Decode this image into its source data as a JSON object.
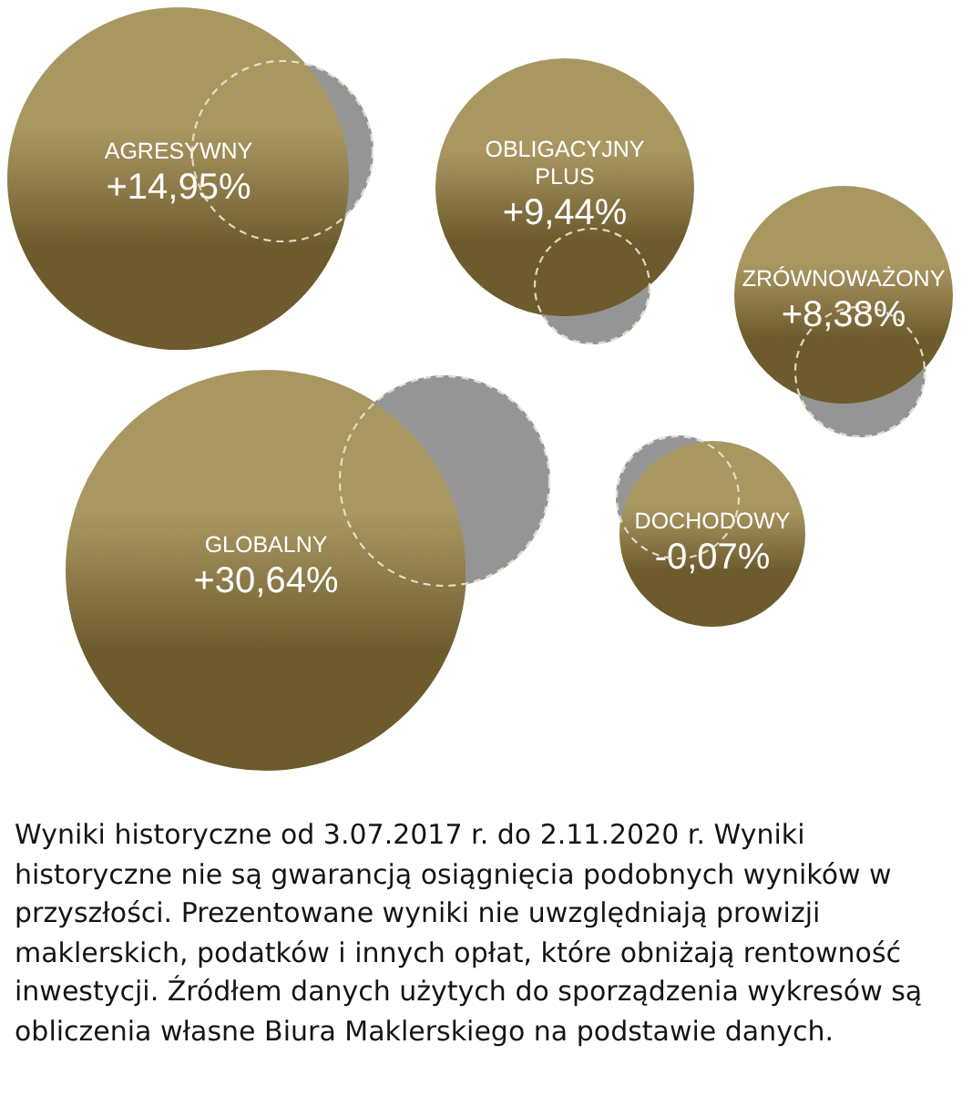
{
  "chart_data": {
    "type": "other",
    "categories": [
      "AGRESYWNY",
      "OBLIGACYJNY PLUS",
      "ZRÓWNOWAŻONY",
      "GLOBALNY",
      "DOCHODOWY"
    ],
    "values": [
      14.95,
      9.44,
      8.38,
      30.64,
      -0.07
    ],
    "value_labels": [
      "+14,95%",
      "+9,44%",
      "+8,38%",
      "+30,64%",
      "-0,07%"
    ],
    "color": "#a99762",
    "annotations": [
      "Wyniki historyczne od 3.07.2017 r. do 2.11.2020 r. Wyniki historyczne nie są gwarancją osiągnięcia podobnych wyników w przyszłości. Prezentowane wyniki nie uwzględniają prowizji maklerskich, podatków i innych opłat, które obniżają rentowność inwestycji. Źródłem danych użytych do sporządzenia wykresów są obliczenia własne Biura Maklerskiego na podstawie danych."
    ]
  }
}
